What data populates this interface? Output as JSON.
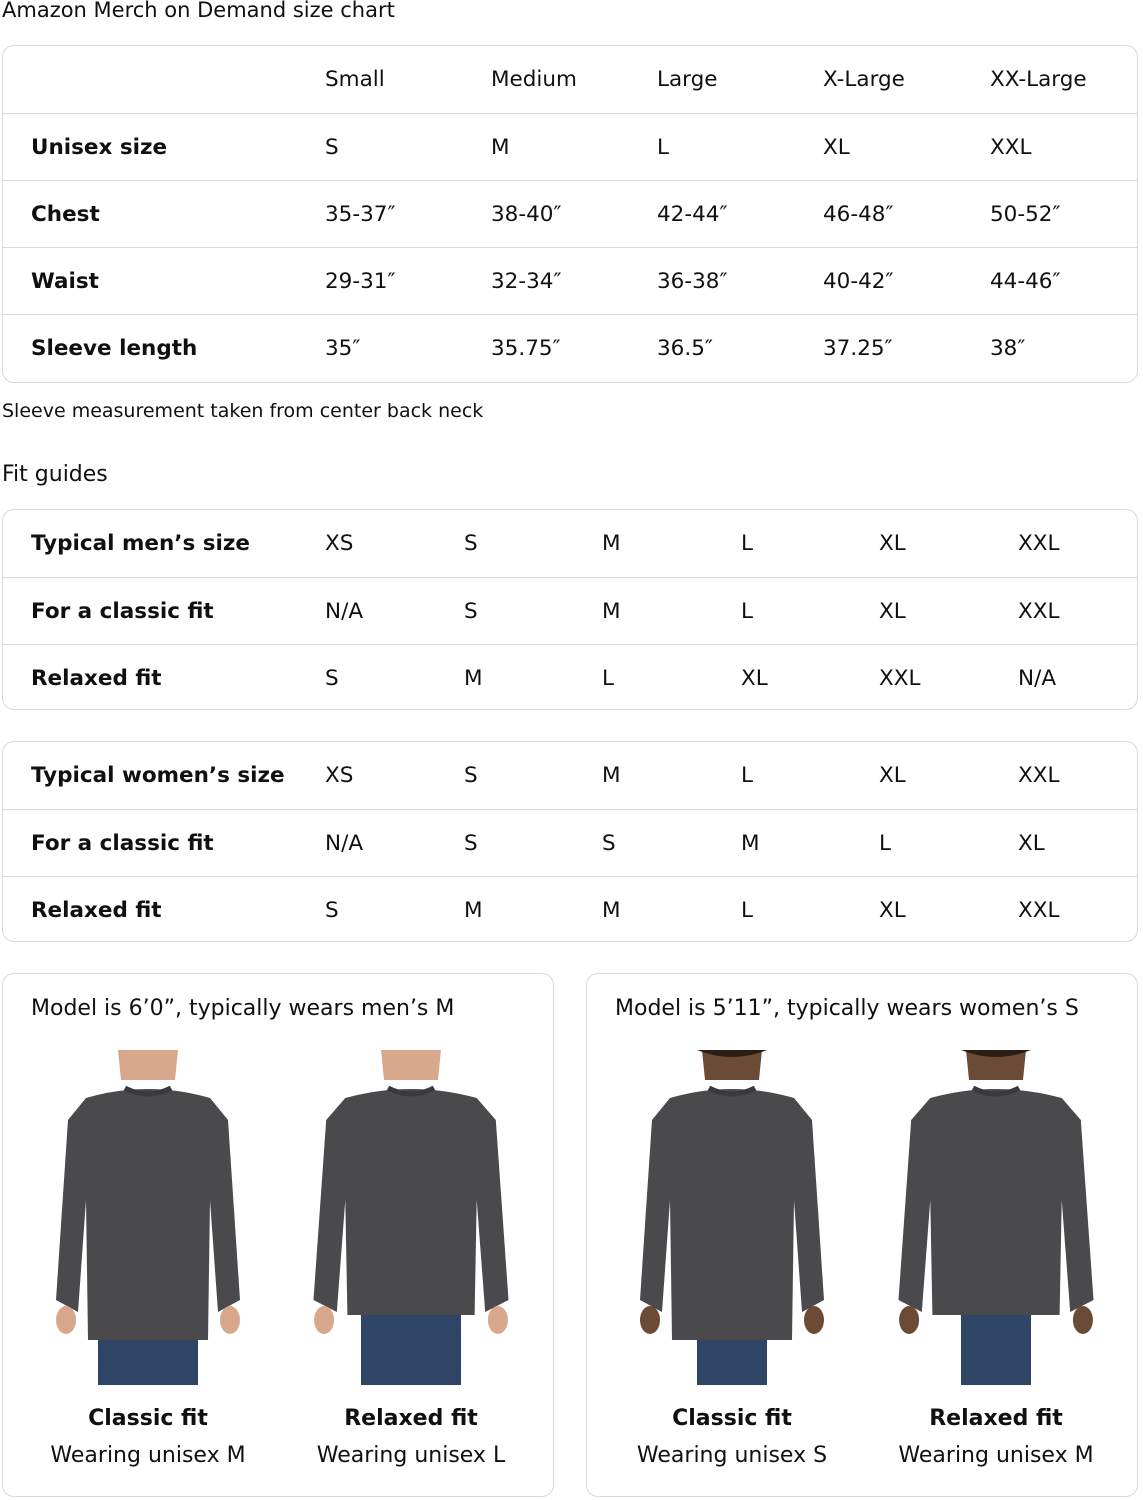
{
  "size_chart": {
    "title": "Amazon Merch on Demand size chart",
    "columns": [
      "Small",
      "Medium",
      "Large",
      "X-Large",
      "XX-Large"
    ],
    "rows": [
      {
        "label": "Unisex size",
        "values": [
          "S",
          "M",
          "L",
          "XL",
          "XXL"
        ]
      },
      {
        "label": "Chest",
        "values": [
          "35-37″",
          "38-40″",
          "42-44″",
          "46-48″",
          "50-52″"
        ]
      },
      {
        "label": "Waist",
        "values": [
          "29-31″",
          "32-34″",
          "36-38″",
          "40-42″",
          "44-46″"
        ]
      },
      {
        "label": "Sleeve length",
        "values": [
          "35″",
          "35.75″",
          "36.5″",
          "37.25″",
          "38″"
        ]
      }
    ],
    "note": "Sleeve measurement taken from center back neck"
  },
  "fit_guides": {
    "title": "Fit guides",
    "mens": [
      {
        "label": "Typical men’s size",
        "values": [
          "XS",
          "S",
          "M",
          "L",
          "XL",
          "XXL"
        ]
      },
      {
        "label": "For a classic fit",
        "values": [
          "N/A",
          "S",
          "M",
          "L",
          "XL",
          "XXL"
        ]
      },
      {
        "label": "Relaxed fit",
        "values": [
          "S",
          "M",
          "L",
          "XL",
          "XXL",
          "N/A"
        ]
      }
    ],
    "womens": [
      {
        "label": "Typical women’s size",
        "values": [
          "XS",
          "S",
          "M",
          "L",
          "XL",
          "XXL"
        ]
      },
      {
        "label": "For a classic fit",
        "values": [
          "N/A",
          "S",
          "S",
          "M",
          "L",
          "XL"
        ]
      },
      {
        "label": "Relaxed fit",
        "values": [
          "S",
          "M",
          "M",
          "L",
          "XL",
          "XXL"
        ]
      }
    ]
  },
  "models": [
    {
      "title": "Model is 6’0”, typically wears men’s M",
      "fits": [
        {
          "name": "Classic fit",
          "wearing": "Wearing unisex M"
        },
        {
          "name": "Relaxed fit",
          "wearing": "Wearing unisex L"
        }
      ]
    },
    {
      "title": "Model is 5’11”, typically wears women’s S",
      "fits": [
        {
          "name": "Classic fit",
          "wearing": "Wearing unisex S"
        },
        {
          "name": "Relaxed fit",
          "wearing": "Wearing unisex M"
        }
      ]
    }
  ],
  "colors": {
    "border": "#d5d9d9",
    "sweatshirt": "#4a4a4c",
    "jeans": "#2f4566"
  }
}
